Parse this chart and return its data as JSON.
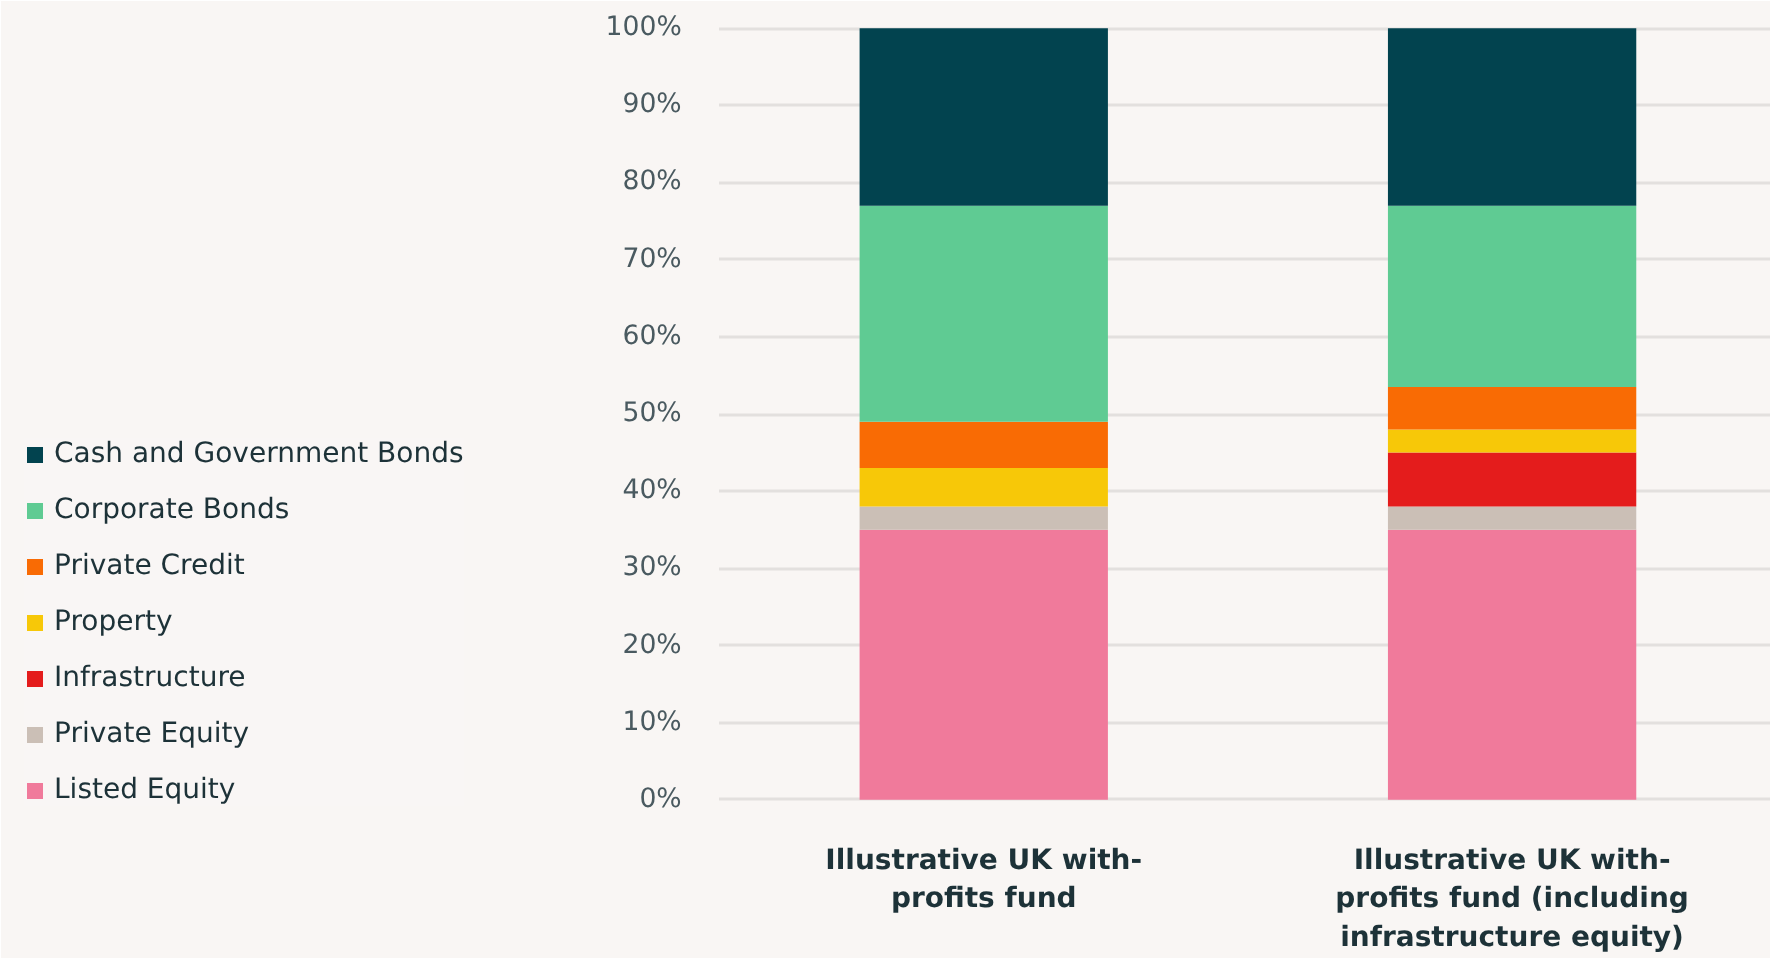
{
  "chart_data": {
    "type": "bar",
    "stacked": true,
    "categories": [
      "Illustrative UK with-profits fund",
      "Illustrative UK with-profits fund (including infrastructure equity)"
    ],
    "series": [
      {
        "name": "Listed Equity",
        "color": "#f07a9b",
        "values": [
          35,
          35
        ]
      },
      {
        "name": "Private Equity",
        "color": "#cbbfb6",
        "values": [
          3,
          3
        ]
      },
      {
        "name": "Infrastructure",
        "color": "#e41c1c",
        "values": [
          0,
          7
        ]
      },
      {
        "name": "Property",
        "color": "#f7c808",
        "values": [
          5,
          3
        ]
      },
      {
        "name": "Private Credit",
        "color": "#f96b04",
        "values": [
          6,
          5.5
        ]
      },
      {
        "name": "Corporate Bonds",
        "color": "#5fcb93",
        "values": [
          28,
          23.5
        ]
      },
      {
        "name": "Cash and Government Bonds",
        "color": "#02434f",
        "values": [
          23,
          23
        ]
      }
    ],
    "ylim": [
      0,
      100
    ],
    "yticks": [
      {
        "value": 0,
        "label": "0%"
      },
      {
        "value": 10,
        "label": "10%"
      },
      {
        "value": 20,
        "label": "20%"
      },
      {
        "value": 30,
        "label": "30%"
      },
      {
        "value": 40,
        "label": "40%"
      },
      {
        "value": 50,
        "label": "50%"
      },
      {
        "value": 60,
        "label": "60%"
      },
      {
        "value": 70,
        "label": "70%"
      },
      {
        "value": 80,
        "label": "80%"
      },
      {
        "value": 90,
        "label": "90%"
      },
      {
        "value": 100,
        "label": "100%"
      }
    ],
    "grid": "y",
    "legend": "left"
  }
}
